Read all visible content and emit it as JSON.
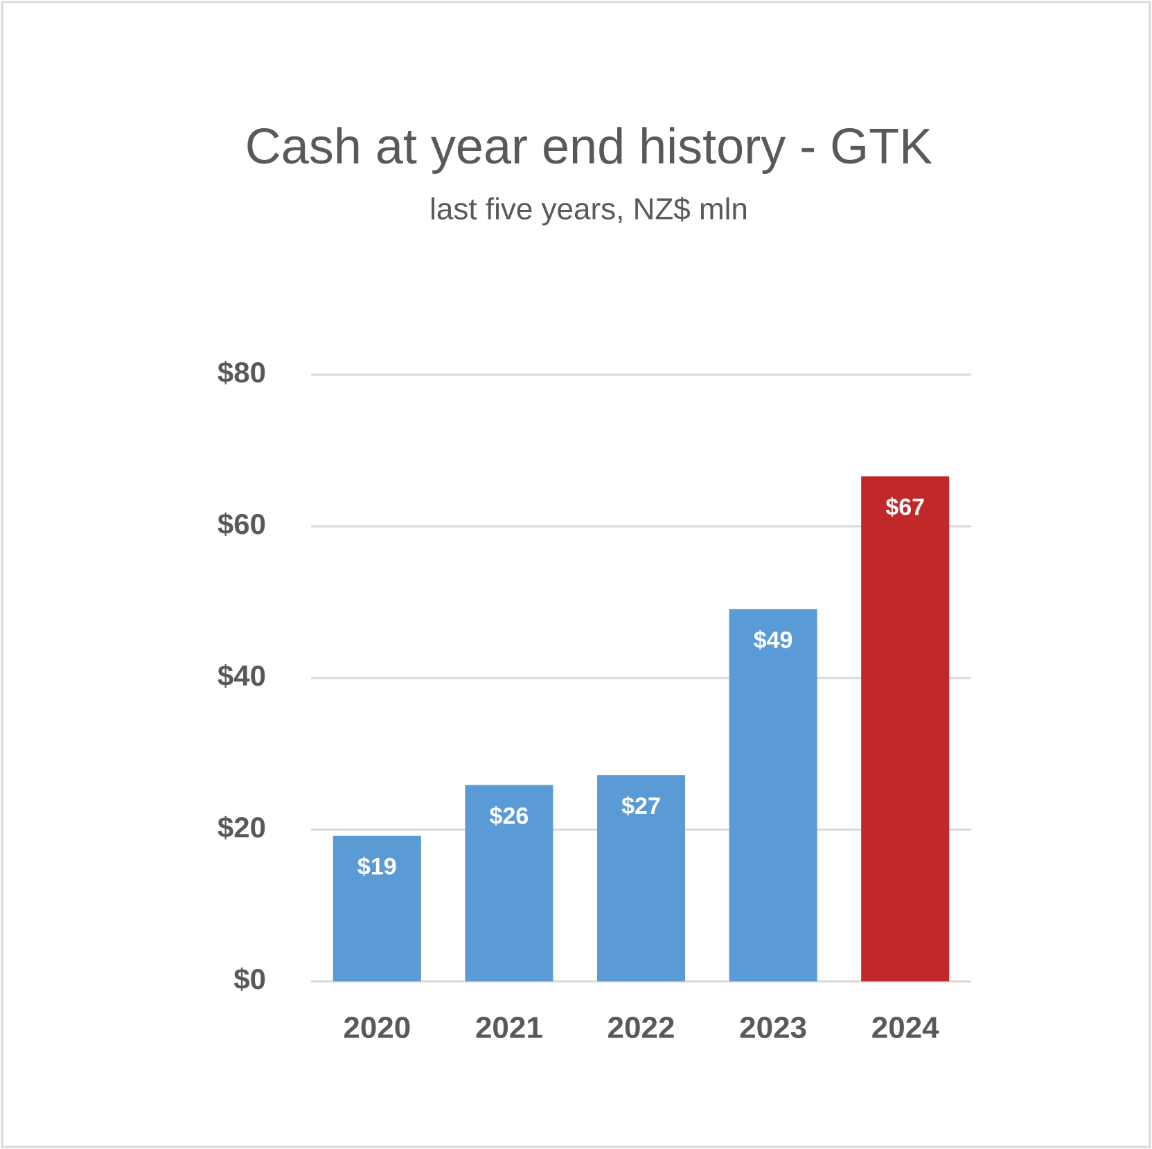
{
  "chart_data": {
    "type": "bar",
    "title": "Cash at year end history - GTK",
    "subtitle": "last five years, NZ$ mln",
    "categories": [
      "2020",
      "2021",
      "2022",
      "2023",
      "2024"
    ],
    "values": [
      19.2,
      25.9,
      27.2,
      49.1,
      66.6
    ],
    "value_labels": [
      "$19",
      "$26",
      "$27",
      "$49",
      "$67"
    ],
    "colors": [
      "#5b9bd5",
      "#5b9bd5",
      "#5b9bd5",
      "#5b9bd5",
      "#c0282a"
    ],
    "ylim": [
      0,
      80
    ],
    "yticks": [
      {
        "value": 0,
        "label": "$0"
      },
      {
        "value": 20,
        "label": "$20"
      },
      {
        "value": 40,
        "label": "$40"
      },
      {
        "value": 60,
        "label": "$60"
      },
      {
        "value": 80,
        "label": "$80"
      }
    ],
    "grid": true
  }
}
